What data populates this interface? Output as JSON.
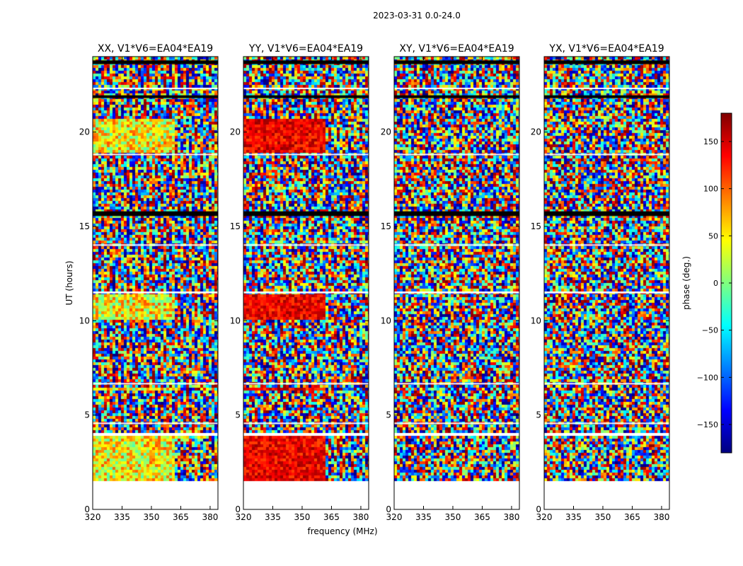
{
  "chart_data": {
    "type": "heatmap",
    "suptitle": "2023-03-31 0.0-24.0",
    "xlabel": "frequency (MHz)",
    "ylabel": "UT (hours)",
    "xlim": [
      320,
      384
    ],
    "ylim": [
      0,
      24
    ],
    "x_ticks": [
      320,
      335,
      350,
      365,
      380
    ],
    "x_tick_labels": [
      "320",
      "335",
      "350",
      "365",
      "380"
    ],
    "y_ticks": [
      0,
      5,
      10,
      15,
      20
    ],
    "y_tick_labels": [
      "0",
      "5",
      "10",
      "15",
      "20"
    ],
    "data_extent_hours": [
      1.6,
      24.0
    ],
    "panels": [
      {
        "title": "XX, V1*V6=EA04*EA19",
        "polarization": "XX",
        "style": "parallel_warm",
        "coherent_bands": [
          [
            1.6,
            3.9
          ],
          [
            6.3,
            6.6
          ],
          [
            10.2,
            11.4
          ],
          [
            19.0,
            20.7
          ]
        ]
      },
      {
        "title": "YY, V1*V6=EA04*EA19",
        "polarization": "YY",
        "style": "parallel_red",
        "coherent_bands": [
          [
            1.6,
            3.9
          ],
          [
            6.3,
            6.6
          ],
          [
            10.2,
            11.4
          ],
          [
            19.0,
            20.7
          ]
        ]
      },
      {
        "title": "XY, V1*V6=EA04*EA19",
        "polarization": "XY",
        "style": "cross_noise",
        "coherent_bands": []
      },
      {
        "title": "YX, V1*V6=EA04*EA19",
        "polarization": "YX",
        "style": "cross_noise",
        "coherent_bands": []
      }
    ],
    "colorbar": {
      "label": "phase (deg.)",
      "range": [
        -180,
        180
      ],
      "ticks": [
        -150,
        -100,
        -50,
        0,
        50,
        100,
        150
      ],
      "tick_labels": [
        "−150",
        "−100",
        "−50",
        "0",
        "50",
        "100",
        "150"
      ],
      "colormap": "jet",
      "colors": [
        "#00007f",
        "#0000ff",
        "#007fff",
        "#00ffff",
        "#7fff7f",
        "#ffff00",
        "#ff7f00",
        "#ff0000",
        "#7f0000"
      ]
    },
    "flagged_black_bands_hours": [
      [
        15.55,
        15.8
      ],
      [
        23.6,
        23.8
      ],
      [
        21.8,
        21.95
      ]
    ],
    "blank_gap_hours": [
      [
        3.9,
        4.05
      ],
      [
        4.55,
        4.6
      ],
      [
        6.65,
        6.7
      ],
      [
        11.45,
        11.55
      ],
      [
        14.0,
        14.05
      ],
      [
        18.8,
        18.85
      ],
      [
        22.3,
        22.35
      ]
    ]
  }
}
